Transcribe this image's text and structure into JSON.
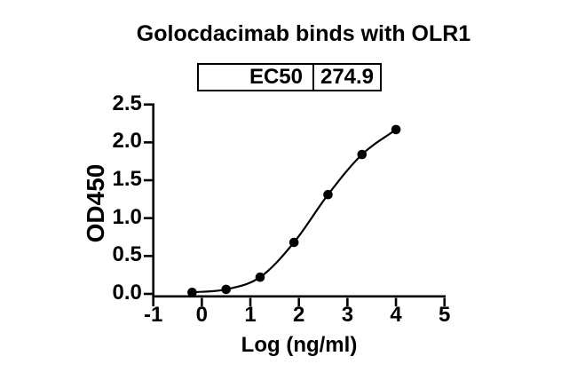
{
  "chart_data": {
    "type": "scatter",
    "title": "Golocdacimab binds with OLR1",
    "xlabel": "Log (ng/ml)",
    "ylabel": "OD450",
    "xlim": [
      -1,
      5
    ],
    "ylim": [
      0,
      2.5
    ],
    "x_ticks": [
      -1,
      0,
      1,
      2,
      3,
      4,
      5
    ],
    "x_tick_labels": [
      "-1",
      "0",
      "1",
      "2",
      "3",
      "4",
      "5"
    ],
    "y_ticks": [
      0,
      0.5,
      1.0,
      1.5,
      2.0,
      2.5
    ],
    "y_tick_labels": [
      "0.0",
      "0.5",
      "1.0",
      "1.5",
      "2.0",
      "2.5"
    ],
    "grid": false,
    "legend_position": "none",
    "axis_color": "#000000",
    "marker_color": "#000000",
    "curve_color": "#000000",
    "background_color": "#ffffff",
    "series": [
      {
        "name": "Golocdacimab",
        "fit": "sigmoidal-4PL-curve",
        "x": [
          -0.2,
          0.5,
          1.2,
          1.9,
          2.6,
          3.3,
          4.0
        ],
        "y": [
          0.02,
          0.06,
          0.22,
          0.68,
          1.31,
          1.84,
          2.17
        ]
      }
    ],
    "ec50": {
      "label": "EC50",
      "value": "274.9"
    }
  }
}
